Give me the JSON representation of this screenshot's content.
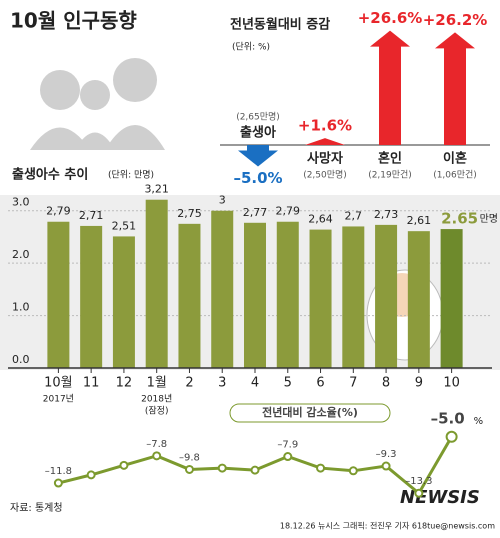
{
  "header": {
    "title": "10월 인구동향"
  },
  "chart_data": [
    {
      "type": "arrow",
      "title": "전년동월대비 증감",
      "subtitle": "(단위: %)",
      "categories": [
        "출생아",
        "사망자",
        "혼인",
        "이혼"
      ],
      "category_notes": [
        "(2,65만명)",
        "(2,50만명)",
        "(2,19만건)",
        "(1,06만건)"
      ],
      "values": [
        -5.0,
        1.6,
        26.6,
        26.2
      ],
      "value_labels": [
        "–5.0%",
        "+1.6%",
        "+26.6%",
        "+26.2%"
      ],
      "colors": {
        "up": "#e8262b",
        "down": "#1a6fc2"
      }
    },
    {
      "type": "bar",
      "title": "출생아수 추이",
      "subtitle": "(단위: 만명)",
      "categories": [
        "10월",
        "11",
        "12",
        "1월",
        "2",
        "3",
        "4",
        "5",
        "6",
        "7",
        "8",
        "9",
        "10"
      ],
      "category_notes": [
        [
          "2017년"
        ],
        null,
        null,
        [
          "2018년",
          "(잠정)"
        ],
        null,
        null,
        null,
        null,
        null,
        null,
        null,
        null,
        null
      ],
      "values": [
        2.79,
        2.71,
        2.51,
        3.21,
        2.75,
        3,
        2.77,
        2.79,
        2.64,
        2.7,
        2.73,
        2.61,
        2.65
      ],
      "value_labels": [
        "2,79",
        "2,71",
        "2,51",
        "3,21",
        "2,75",
        "3",
        "2,77",
        "2,79",
        "2,64",
        "2,7",
        "2,73",
        "2,61",
        "2.65"
      ],
      "last_unit": "만명",
      "color": "#8c9b3c",
      "highlight_color": "#6e8a2c",
      "ylim": [
        0,
        3.3
      ],
      "yticks": [
        {
          "value": 0,
          "label": "0.0"
        },
        {
          "value": 1,
          "label": "1.0"
        },
        {
          "value": 2,
          "label": "2.0"
        },
        {
          "value": 3,
          "label": "3.0"
        }
      ],
      "grid": true
    },
    {
      "type": "line",
      "title": "전년대비 감소율(%)",
      "values": [
        -11.8,
        -10.6,
        -9.2,
        -7.8,
        -9.8,
        -9.6,
        -9.9,
        -7.9,
        -9.6,
        -10.0,
        -9.3,
        -13.3,
        -5.0
      ],
      "value_labels": [
        "–11.8",
        null,
        null,
        "–7.8",
        "–9.8",
        null,
        null,
        "–7.9",
        null,
        null,
        "–9.3",
        "–13.3",
        "–5.0"
      ],
      "last_unit": "%",
      "color": "#7c9a2e",
      "ylim": [
        -14,
        -4
      ]
    }
  ],
  "footer": {
    "source": "자료: 통계청",
    "credit": "18.12.26 뉴시스 그래픽: 전진우 기자 618tue@newsis.com",
    "watermark": "NEWSIS"
  }
}
